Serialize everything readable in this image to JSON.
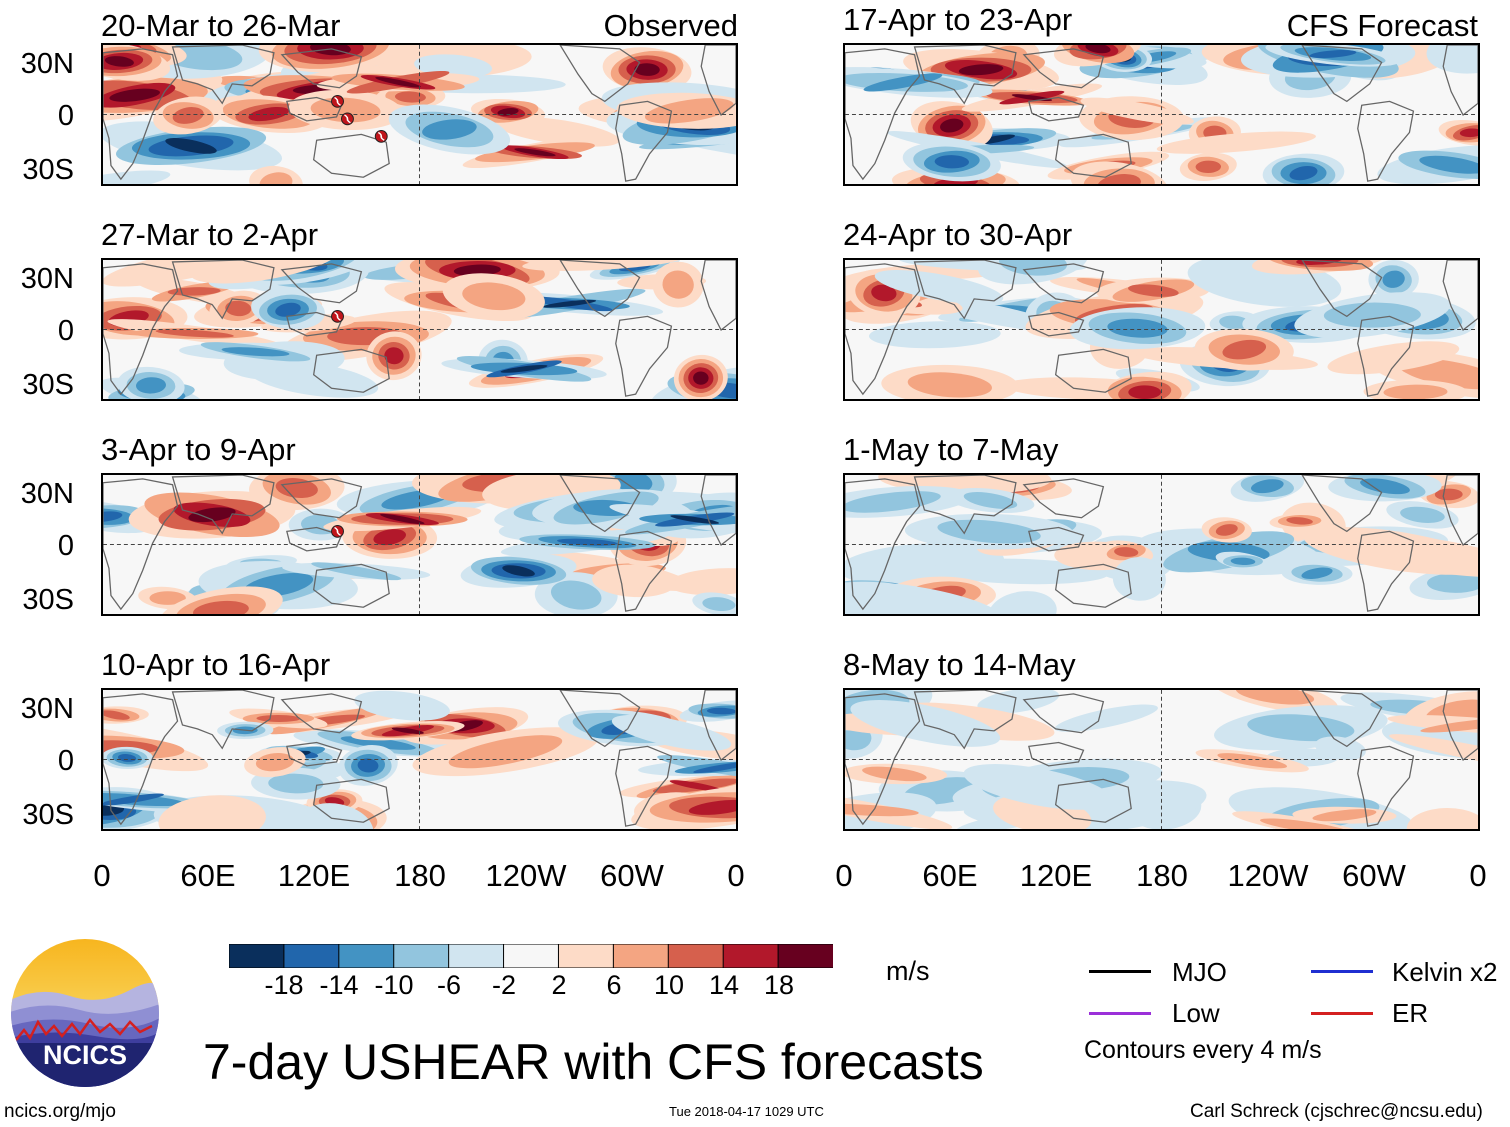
{
  "colors": {
    "scale": [
      "#0a2f5c",
      "#2166ac",
      "#4393c3",
      "#92c5de",
      "#d1e5f0",
      "#f7f7f7",
      "#fddbc7",
      "#f4a582",
      "#d6604d",
      "#b2182b",
      "#67001f"
    ],
    "mjo": "#000000",
    "kelvin": "#1f2fd1",
    "low": "#9b30d9",
    "er": "#d42020"
  },
  "columns": {
    "observed_label": "Observed",
    "forecast_label": "CFS Forecast"
  },
  "observed_panels": [
    {
      "title": "20-Mar to 26-Mar",
      "storm_count": 3
    },
    {
      "title": "27-Mar to 2-Apr",
      "storm_count": 1
    },
    {
      "title": "3-Apr to 9-Apr",
      "storm_count": 1
    },
    {
      "title": "10-Apr to 16-Apr",
      "storm_count": 0
    }
  ],
  "forecast_panels": [
    {
      "title": "17-Apr to 23-Apr"
    },
    {
      "title": "24-Apr to 30-Apr"
    },
    {
      "title": "1-May to 7-May"
    },
    {
      "title": "8-May to 14-May"
    }
  ],
  "lat_labels": [
    "30N",
    "0",
    "30S"
  ],
  "lon_labels": [
    "0",
    "60E",
    "120E",
    "180",
    "120W",
    "60W",
    "0"
  ],
  "colorbar": {
    "ticks": [
      "-18",
      "-14",
      "-10",
      "-6",
      "-2",
      "2",
      "6",
      "10",
      "14",
      "18"
    ],
    "unit": "m/s"
  },
  "legend": {
    "mjo": "MJO",
    "kelvin": "Kelvin x2",
    "low": "Low",
    "er": "ER",
    "contours_note": "Contours every 4 m/s"
  },
  "logo": {
    "text": "NCICS"
  },
  "title": "7-day USHEAR with CFS forecasts",
  "footer": {
    "left": "ncics.org/mjo",
    "center": "Tue 2018-04-17 1029 UTC",
    "right": "Carl Schreck (cjschrec@ncsu.edu)"
  }
}
